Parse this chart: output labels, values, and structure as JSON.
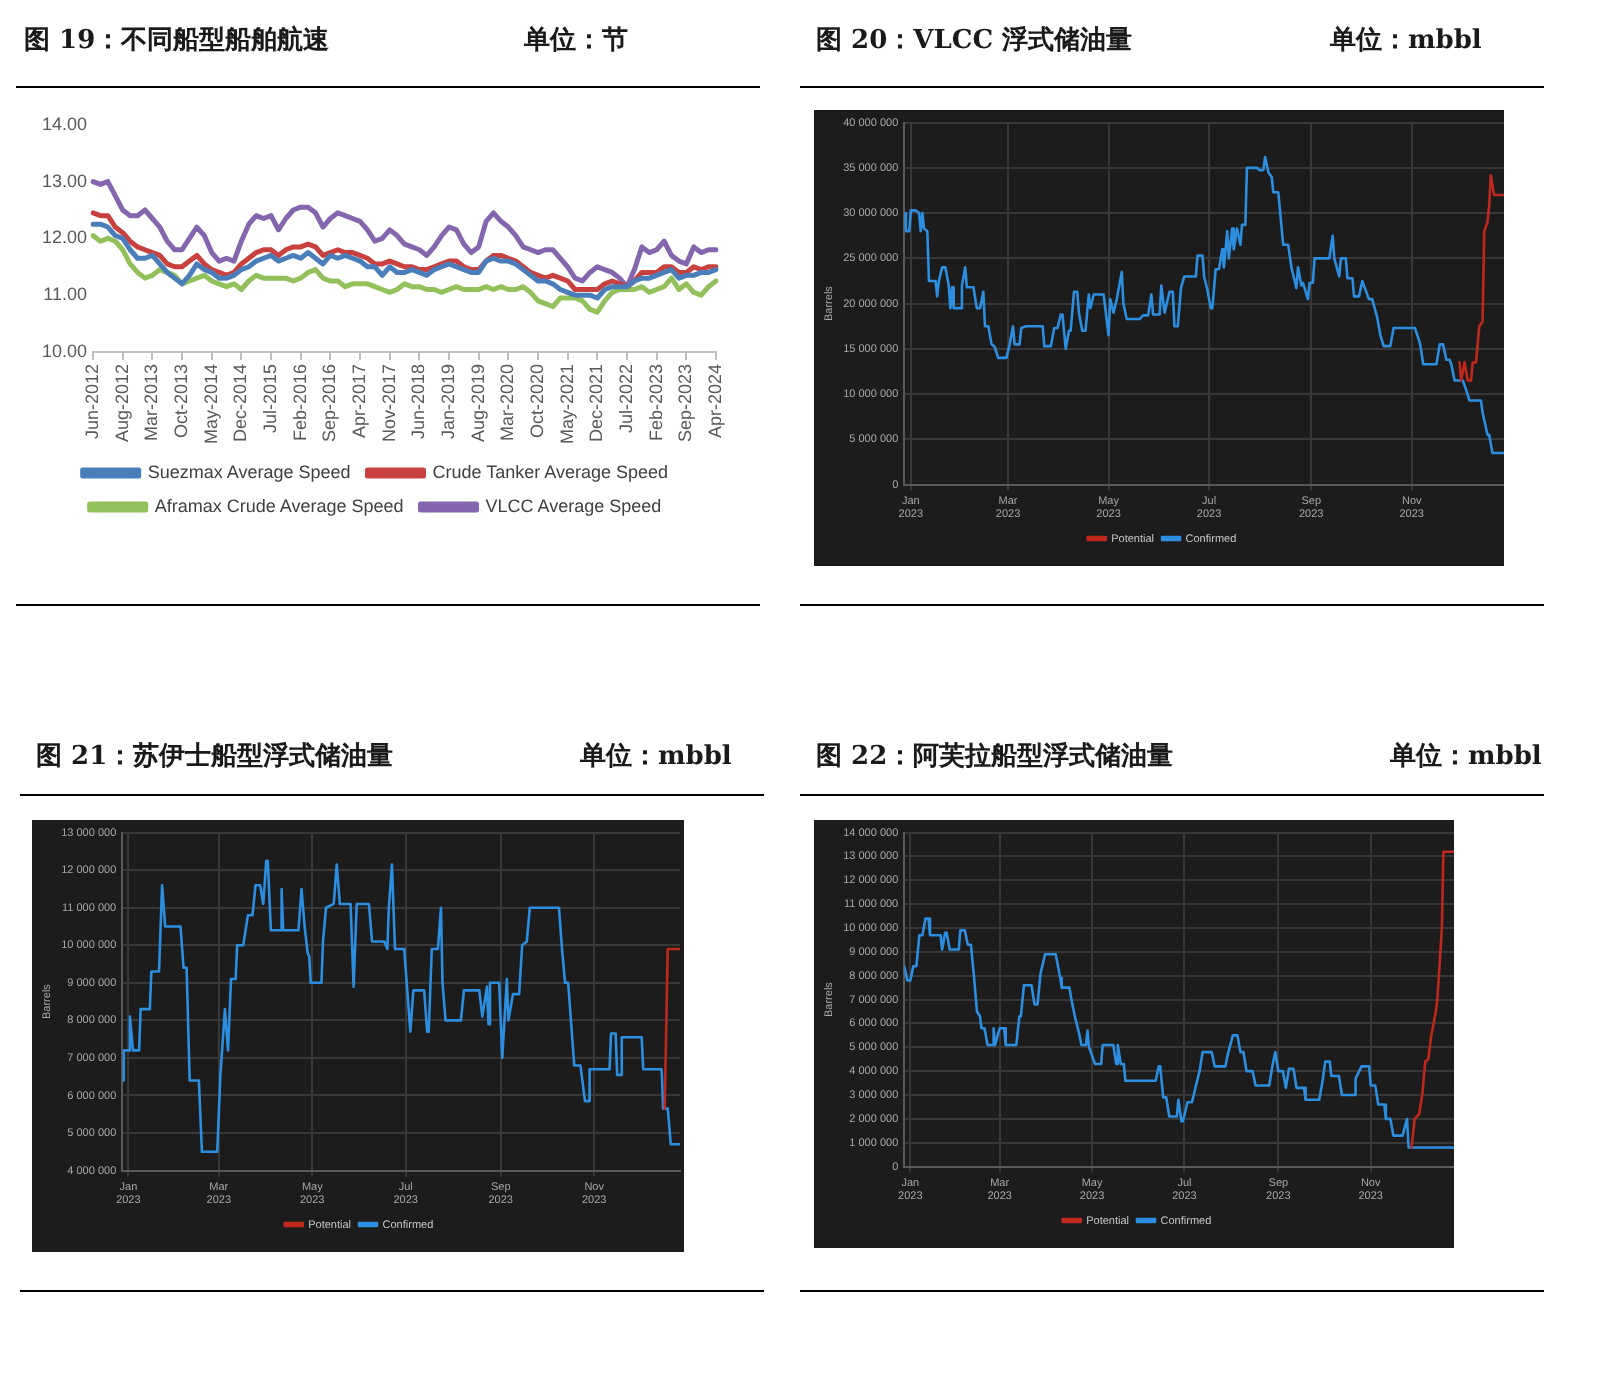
{
  "chart_data": [
    {
      "type": "line",
      "title": "图 19：不同船型船舶航速",
      "subtitle": "单位：节",
      "categories": [
        "Jun-2012",
        null,
        null,
        null,
        "Aug-2012",
        null,
        null,
        null,
        "Mar-2013",
        null,
        null,
        null,
        "Oct-2013",
        null,
        null,
        null,
        "May-2014",
        null,
        null,
        null,
        "Dec-2014",
        null,
        null,
        null,
        "Jul-2015",
        null,
        null,
        null,
        "Feb-2016",
        null,
        null,
        null,
        "Sep-2016",
        null,
        null,
        null,
        "Apr-2017",
        null,
        null,
        null,
        "Nov-2017",
        null,
        null,
        null,
        "Jun-2018",
        null,
        null,
        null,
        "Jan-2019",
        null,
        null,
        null,
        "Aug-2019",
        null,
        null,
        null,
        "Mar-2020",
        null,
        null,
        null,
        "Oct-2020",
        null,
        null,
        null,
        "May-2021",
        null,
        null,
        null,
        "Dec-2021",
        null,
        null,
        null,
        "Jul-2022",
        null,
        null,
        null,
        "Feb-2023",
        null,
        null,
        null,
        "Sep-2023",
        null,
        null,
        null,
        "Apr-2024"
      ],
      "series": [
        {
          "name": "Suezmax Average Speed",
          "color": "#4a7ebb",
          "values": [
            12.25,
            12.25,
            12.2,
            12.05,
            12.0,
            11.8,
            11.65,
            11.65,
            11.7,
            11.55,
            11.4,
            11.3,
            11.2,
            11.35,
            11.55,
            11.45,
            11.4,
            11.3,
            11.3,
            11.35,
            11.45,
            11.5,
            11.6,
            11.65,
            11.7,
            11.6,
            11.65,
            11.7,
            11.65,
            11.75,
            11.65,
            11.55,
            11.7,
            11.65,
            11.7,
            11.65,
            11.6,
            11.5,
            11.5,
            11.35,
            11.5,
            11.4,
            11.4,
            11.45,
            11.4,
            11.35,
            11.45,
            11.5,
            11.55,
            11.5,
            11.45,
            11.4,
            11.4,
            11.6,
            11.65,
            11.6,
            11.6,
            11.55,
            11.45,
            11.35,
            11.25,
            11.25,
            11.2,
            11.1,
            11.05,
            11.0,
            11.0,
            11.0,
            10.95,
            11.1,
            11.15,
            11.15,
            11.15,
            11.25,
            11.3,
            11.3,
            11.35,
            11.4,
            11.45,
            11.3,
            11.35,
            11.35,
            11.4,
            11.4,
            11.45
          ]
        },
        {
          "name": "Crude Tanker Average Speed",
          "color": "#c9413e",
          "values": [
            12.45,
            12.4,
            12.4,
            12.2,
            12.1,
            11.95,
            11.85,
            11.8,
            11.75,
            11.7,
            11.55,
            11.5,
            11.5,
            11.6,
            11.7,
            11.55,
            11.45,
            11.4,
            11.35,
            11.4,
            11.55,
            11.65,
            11.75,
            11.8,
            11.8,
            11.7,
            11.8,
            11.85,
            11.85,
            11.9,
            11.85,
            11.7,
            11.75,
            11.8,
            11.75,
            11.75,
            11.7,
            11.65,
            11.55,
            11.55,
            11.6,
            11.55,
            11.5,
            11.5,
            11.45,
            11.45,
            11.5,
            11.55,
            11.6,
            11.6,
            11.5,
            11.45,
            11.45,
            11.6,
            11.7,
            11.7,
            11.65,
            11.6,
            11.5,
            11.4,
            11.35,
            11.3,
            11.35,
            11.3,
            11.25,
            11.1,
            11.1,
            11.1,
            11.1,
            11.2,
            11.25,
            11.2,
            11.15,
            11.25,
            11.4,
            11.4,
            11.4,
            11.5,
            11.5,
            11.4,
            11.4,
            11.5,
            11.45,
            11.5,
            11.5
          ]
        },
        {
          "name": "Aframax Crude Average Speed",
          "color": "#92c05a",
          "values": [
            12.05,
            11.95,
            12.0,
            11.95,
            11.8,
            11.55,
            11.4,
            11.3,
            11.35,
            11.45,
            11.4,
            11.35,
            11.2,
            11.25,
            11.3,
            11.35,
            11.25,
            11.2,
            11.15,
            11.2,
            11.1,
            11.25,
            11.35,
            11.3,
            11.3,
            11.3,
            11.3,
            11.25,
            11.3,
            11.4,
            11.45,
            11.3,
            11.25,
            11.25,
            11.15,
            11.2,
            11.2,
            11.2,
            11.15,
            11.1,
            11.05,
            11.1,
            11.2,
            11.15,
            11.15,
            11.1,
            11.1,
            11.05,
            11.1,
            11.15,
            11.1,
            11.1,
            11.1,
            11.15,
            11.1,
            11.15,
            11.1,
            11.1,
            11.15,
            11.05,
            10.9,
            10.85,
            10.8,
            10.95,
            10.95,
            10.95,
            10.9,
            10.75,
            10.7,
            10.9,
            11.05,
            11.1,
            11.1,
            11.1,
            11.15,
            11.05,
            11.1,
            11.15,
            11.3,
            11.1,
            11.2,
            11.05,
            11.0,
            11.15,
            11.25
          ]
        },
        {
          "name": "VLCC Average Speed",
          "color": "#8465ae",
          "values": [
            13.0,
            12.95,
            13.0,
            12.75,
            12.5,
            12.4,
            12.4,
            12.5,
            12.35,
            12.2,
            11.95,
            11.8,
            11.8,
            12.0,
            12.2,
            12.05,
            11.75,
            11.6,
            11.65,
            11.6,
            11.95,
            12.25,
            12.4,
            12.35,
            12.4,
            12.15,
            12.35,
            12.5,
            12.55,
            12.55,
            12.45,
            12.2,
            12.35,
            12.45,
            12.4,
            12.35,
            12.3,
            12.15,
            11.95,
            12.0,
            12.15,
            12.05,
            11.9,
            11.85,
            11.8,
            11.7,
            11.85,
            12.05,
            12.2,
            12.15,
            11.9,
            11.75,
            11.85,
            12.3,
            12.45,
            12.3,
            12.2,
            12.05,
            11.85,
            11.8,
            11.75,
            11.8,
            11.8,
            11.65,
            11.5,
            11.3,
            11.25,
            11.4,
            11.5,
            11.45,
            11.4,
            11.3,
            11.15,
            11.45,
            11.85,
            11.75,
            11.8,
            11.95,
            11.7,
            11.6,
            11.55,
            11.85,
            11.75,
            11.8,
            11.8
          ]
        }
      ],
      "ylim": [
        10,
        14
      ],
      "yticks": [
        {
          "value": 10,
          "label": "10.00"
        },
        {
          "value": 11,
          "label": "11.00"
        },
        {
          "value": 12,
          "label": "12.00"
        },
        {
          "value": 13,
          "label": "13.00"
        },
        {
          "value": 14,
          "label": "14.00"
        }
      ],
      "legend": "bottom",
      "marker": "none"
    },
    {
      "type": "line",
      "title": "图 20：VLCC 浮式储油量",
      "subtitle": "单位：mbbl",
      "ylabel": "Barrels",
      "series": [
        {
          "name": "Potential",
          "color": "#c0281e",
          "x": [
            "2023-11-30",
            "2023-12-01",
            "2023-12-03",
            "2023-12-05",
            "2023-12-07",
            "2023-12-08",
            "2023-12-10",
            "2023-12-12",
            "2023-12-14",
            "2023-12-15",
            "2023-12-17",
            "2023-12-18",
            "2023-12-19",
            "2023-12-21",
            "2023-12-27"
          ],
          "values": [
            13500000,
            11500000,
            13500000,
            11500000,
            11500000,
            13500000,
            13500000,
            17500000,
            18000000,
            28000000,
            29000000,
            30800000,
            34200000,
            32000000,
            32000000
          ]
        },
        {
          "name": "Confirmed",
          "color": "#2b8ee0",
          "x": [
            "2022-12-28",
            "2022-12-29",
            "2022-12-31",
            "2023-01-01",
            "2023-01-04",
            "2023-01-06",
            "2023-01-07",
            "2023-01-08",
            "2023-01-09",
            "2023-01-11",
            "2023-01-12",
            "2023-01-16",
            "2023-01-17",
            "2023-01-18",
            "2023-01-20",
            "2023-01-22",
            "2023-01-24",
            "2023-01-25",
            "2023-01-26",
            "2023-01-27",
            "2023-01-31",
            "2023-02-01",
            "2023-02-03",
            "2023-02-04",
            "2023-02-08",
            "2023-02-10",
            "2023-02-12",
            "2023-02-14",
            "2023-02-15",
            "2023-02-17",
            "2023-02-19",
            "2023-02-21",
            "2023-02-23",
            "2023-02-28",
            "2023-03-02",
            "2023-03-04",
            "2023-03-05",
            "2023-03-08",
            "2023-03-09",
            "2023-03-12",
            "2023-03-22",
            "2023-03-23",
            "2023-03-27",
            "2023-03-29",
            "2023-03-31",
            "2023-04-02",
            "2023-04-03",
            "2023-04-05",
            "2023-04-07",
            "2023-04-08",
            "2023-04-10",
            "2023-04-12",
            "2023-04-13",
            "2023-04-15",
            "2023-04-17",
            "2023-04-19",
            "2023-04-20",
            "2023-04-22",
            "2023-04-28",
            "2023-05-01",
            "2023-05-02",
            "2023-05-04",
            "2023-05-06",
            "2023-05-09",
            "2023-05-10",
            "2023-05-12",
            "2023-05-20",
            "2023-05-22",
            "2023-05-25",
            "2023-05-27",
            "2023-05-28",
            "2023-06-01",
            "2023-06-02",
            "2023-06-04",
            "2023-06-07",
            "2023-06-09",
            "2023-06-10",
            "2023-06-12",
            "2023-06-14",
            "2023-06-16",
            "2023-06-23",
            "2023-06-24",
            "2023-06-27",
            "2023-06-28",
            "2023-06-30",
            "2023-07-02",
            "2023-07-03",
            "2023-07-05",
            "2023-07-07",
            "2023-07-09",
            "2023-07-10",
            "2023-07-12",
            "2023-07-13",
            "2023-07-15",
            "2023-07-16",
            "2023-07-18",
            "2023-07-20",
            "2023-07-21",
            "2023-07-23",
            "2023-07-24",
            "2023-07-30",
            "2023-08-01",
            "2023-08-03",
            "2023-08-04",
            "2023-08-06",
            "2023-08-08",
            "2023-08-09",
            "2023-08-12",
            "2023-08-15",
            "2023-08-18",
            "2023-08-20",
            "2023-08-23",
            "2023-08-24",
            "2023-08-26",
            "2023-08-27",
            "2023-08-30",
            "2023-08-31",
            "2023-09-02",
            "2023-09-03",
            "2023-09-12",
            "2023-09-14",
            "2023-09-15",
            "2023-09-18",
            "2023-09-19",
            "2023-09-22",
            "2023-09-23",
            "2023-09-26",
            "2023-09-27",
            "2023-09-30",
            "2023-10-02",
            "2023-10-03",
            "2023-10-06",
            "2023-10-08",
            "2023-10-11",
            "2023-10-13",
            "2023-10-15",
            "2023-10-19",
            "2023-10-21",
            "2023-11-03",
            "2023-11-06",
            "2023-11-08",
            "2023-11-16",
            "2023-11-18",
            "2023-11-20",
            "2023-11-22",
            "2023-11-24",
            "2023-11-25",
            "2023-11-27",
            "2023-12-02",
            "2023-12-04",
            "2023-12-06",
            "2023-12-13",
            "2023-12-14",
            "2023-12-17",
            "2023-12-18",
            "2023-12-20",
            "2023-12-27"
          ],
          "values": [
            30000000,
            28000000,
            28000000,
            30300000,
            30300000,
            30000000,
            28000000,
            30000000,
            28300000,
            28000000,
            22500000,
            22500000,
            20800000,
            22500000,
            24000000,
            24000000,
            22000000,
            19500000,
            21800000,
            19500000,
            19500000,
            22000000,
            24000000,
            21800000,
            21800000,
            19500000,
            19500000,
            21300000,
            17500000,
            17500000,
            15500000,
            15200000,
            14000000,
            14000000,
            15500000,
            17500000,
            15500000,
            15500000,
            17300000,
            17500000,
            17500000,
            15300000,
            15300000,
            17300000,
            17300000,
            18800000,
            18800000,
            15000000,
            17000000,
            17000000,
            21300000,
            21300000,
            19000000,
            17000000,
            17000000,
            21000000,
            19500000,
            21000000,
            21000000,
            16500000,
            20500000,
            19000000,
            20500000,
            23500000,
            20000000,
            18300000,
            18300000,
            18700000,
            18700000,
            21000000,
            18800000,
            18800000,
            22000000,
            19000000,
            21300000,
            21300000,
            17500000,
            17500000,
            21800000,
            23000000,
            23000000,
            25300000,
            25300000,
            23000000,
            21500000,
            19500000,
            19500000,
            23800000,
            23800000,
            26000000,
            24000000,
            28000000,
            25000000,
            28300000,
            26000000,
            28300000,
            26500000,
            28700000,
            28700000,
            35000000,
            35000000,
            34700000,
            34800000,
            36200000,
            34500000,
            34000000,
            32300000,
            32300000,
            26500000,
            26500000,
            24000000,
            21700000,
            24000000,
            22000000,
            22300000,
            20500000,
            22300000,
            22300000,
            25000000,
            25000000,
            27500000,
            25000000,
            23000000,
            25000000,
            25000000,
            22800000,
            22800000,
            20800000,
            20800000,
            22500000,
            22500000,
            20500000,
            20500000,
            18500000,
            16500000,
            15300000,
            15300000,
            17300000,
            17300000,
            15600000,
            13300000,
            13300000,
            15500000,
            15500000,
            13800000,
            13800000,
            13300000,
            11500000,
            11500000,
            10500000,
            9300000,
            9300000,
            8000000,
            5500000,
            5500000,
            3500000,
            3500000
          ]
        }
      ],
      "xlim": [
        "2022-12-28",
        "2023-12-27"
      ],
      "xticks": [
        {
          "value": "2023-01-01",
          "label": "Jan\n2023"
        },
        {
          "value": "2023-03-01",
          "label": "Mar\n2023"
        },
        {
          "value": "2023-05-01",
          "label": "May\n2023"
        },
        {
          "value": "2023-07-01",
          "label": "Jul\n2023"
        },
        {
          "value": "2023-09-01",
          "label": "Sep\n2023"
        },
        {
          "value": "2023-11-01",
          "label": "Nov\n2023"
        }
      ],
      "ylim": [
        0,
        40000000
      ],
      "yticks": [
        0,
        {
          "value": 5000000,
          "label": "5 000 000"
        },
        {
          "value": 10000000,
          "label": "10 000 000"
        },
        {
          "value": 15000000,
          "label": "15 000 000"
        },
        {
          "value": 20000000,
          "label": "20 000 000"
        },
        {
          "value": 25000000,
          "label": "25 000 000"
        },
        {
          "value": 30000000,
          "label": "30 000 000"
        },
        {
          "value": 35000000,
          "label": "35 000 000"
        },
        {
          "value": 40000000,
          "label": "40 000 000"
        }
      ],
      "grid": true,
      "legend": "bottom",
      "marker": "none"
    },
    {
      "type": "line",
      "title": "图 21：苏伊士船型浮式储油量",
      "subtitle": "单位：mbbl",
      "ylabel": "Barrels",
      "series": [
        {
          "name": "Potential",
          "color": "#c0281e",
          "x": [
            "2023-12-17",
            "2023-12-19",
            "2023-12-27"
          ],
          "values": [
            5650000,
            9900000,
            9900000
          ]
        },
        {
          "name": "Confirmed",
          "color": "#2b8ee0",
          "x": [
            "2022-12-28",
            "2022-12-29",
            "2023-01-01",
            "2023-01-02",
            "2023-01-04",
            "2023-01-08",
            "2023-01-09",
            "2023-01-15",
            "2023-01-16",
            "2023-01-21",
            "2023-01-23",
            "2023-01-25",
            "2023-02-04",
            "2023-02-06",
            "2023-02-08",
            "2023-02-10",
            "2023-02-16",
            "2023-02-18",
            "2023-02-28",
            "2023-03-02",
            "2023-03-05",
            "2023-03-07",
            "2023-03-09",
            "2023-03-12",
            "2023-03-13",
            "2023-03-17",
            "2023-03-20",
            "2023-03-23",
            "2023-03-25",
            "2023-03-28",
            "2023-03-30",
            "2023-04-01",
            "2023-04-02",
            "2023-04-04",
            "2023-04-10",
            "2023-04-11",
            "2023-04-12",
            "2023-04-22",
            "2023-04-24",
            "2023-04-26",
            "2023-04-28",
            "2023-04-29",
            "2023-04-30",
            "2023-05-07",
            "2023-05-08",
            "2023-05-10",
            "2023-05-15",
            "2023-05-17",
            "2023-05-19",
            "2023-05-26",
            "2023-05-28",
            "2023-05-30",
            "2023-06-07",
            "2023-06-09",
            "2023-06-17",
            "2023-06-19",
            "2023-06-20",
            "2023-06-22",
            "2023-06-24",
            "2023-06-30",
            "2023-07-02",
            "2023-07-04",
            "2023-07-06",
            "2023-07-13",
            "2023-07-15",
            "2023-07-16",
            "2023-07-18",
            "2023-07-22",
            "2023-07-24",
            "2023-07-25",
            "2023-07-27",
            "2023-08-06",
            "2023-08-08",
            "2023-08-18",
            "2023-08-20",
            "2023-08-21",
            "2023-08-23",
            "2023-08-24",
            "2023-08-25",
            "2023-08-31",
            "2023-09-02",
            "2023-09-05",
            "2023-09-06",
            "2023-09-07",
            "2023-09-09",
            "2023-09-13",
            "2023-09-15",
            "2023-09-18",
            "2023-09-20",
            "2023-10-09",
            "2023-10-11",
            "2023-10-13",
            "2023-10-15",
            "2023-10-17",
            "2023-10-19",
            "2023-10-23",
            "2023-10-26",
            "2023-10-28",
            "2023-10-29",
            "2023-11-11",
            "2023-11-12",
            "2023-11-15",
            "2023-11-16",
            "2023-11-18",
            "2023-11-19",
            "2023-12-02",
            "2023-12-03",
            "2023-12-15",
            "2023-12-16",
            "2023-12-19",
            "2023-12-21",
            "2023-12-27"
          ],
          "values": [
            6400000,
            7200000,
            7200000,
            8100000,
            7200000,
            7200000,
            8300000,
            8300000,
            9300000,
            9300000,
            11600000,
            10500000,
            10500000,
            9400000,
            9400000,
            6400000,
            6400000,
            4500000,
            4500000,
            6500000,
            8300000,
            7200000,
            9100000,
            9100000,
            10000000,
            10000000,
            10800000,
            10800000,
            11600000,
            11600000,
            11100000,
            12250000,
            12200000,
            10400000,
            10400000,
            11500000,
            10400000,
            10400000,
            11500000,
            10500000,
            9800000,
            9700000,
            9000000,
            9000000,
            10100000,
            11000000,
            11100000,
            12150000,
            11100000,
            11100000,
            8900000,
            11100000,
            11100000,
            10100000,
            10100000,
            9900000,
            11000000,
            12150000,
            9900000,
            9900000,
            8800000,
            7700000,
            8800000,
            8800000,
            7700000,
            7700000,
            9900000,
            9900000,
            11000000,
            9000000,
            8000000,
            8000000,
            8800000,
            8800000,
            8100000,
            8100000,
            8900000,
            7900000,
            9000000,
            9000000,
            7000000,
            9100000,
            8000000,
            8000000,
            8700000,
            8700000,
            10000000,
            10100000,
            11000000,
            11000000,
            9900000,
            9000000,
            9000000,
            7900000,
            6800000,
            6800000,
            5850000,
            5850000,
            6700000,
            6700000,
            7650000,
            7650000,
            6550000,
            6550000,
            7550000,
            7550000,
            6700000,
            6700000,
            5650000,
            5650000,
            4700000,
            4700000
          ]
        }
      ],
      "xlim": [
        "2022-12-28",
        "2023-12-27"
      ],
      "xticks": [
        {
          "value": "2023-01-01",
          "label": "Jan\n2023"
        },
        {
          "value": "2023-03-01",
          "label": "Mar\n2023"
        },
        {
          "value": "2023-05-01",
          "label": "May\n2023"
        },
        {
          "value": "2023-07-01",
          "label": "Jul\n2023"
        },
        {
          "value": "2023-09-01",
          "label": "Sep\n2023"
        },
        {
          "value": "2023-11-01",
          "label": "Nov\n2023"
        }
      ],
      "ylim": [
        4000000,
        13000000
      ],
      "yticks": [
        {
          "value": 4000000,
          "label": "4 000 000"
        },
        {
          "value": 5000000,
          "label": "5 000 000"
        },
        {
          "value": 6000000,
          "label": "6 000 000"
        },
        {
          "value": 7000000,
          "label": "7 000 000"
        },
        {
          "value": 8000000,
          "label": "8 000 000"
        },
        {
          "value": 9000000,
          "label": "9 000 000"
        },
        {
          "value": 10000000,
          "label": "10 000 000"
        },
        {
          "value": 11000000,
          "label": "11 000 000"
        },
        {
          "value": 12000000,
          "label": "12 000 000"
        },
        {
          "value": 13000000,
          "label": "13 000 000"
        }
      ],
      "grid": true,
      "legend": "bottom",
      "marker": "none"
    },
    {
      "type": "line",
      "title": "图 22：阿芙拉船型浮式储油量",
      "subtitle": "单位：mbbl",
      "ylabel": "Barrels",
      "series": [
        {
          "name": "Potential",
          "color": "#c0281e",
          "x": [
            "2023-11-28",
            "2023-11-30",
            "2023-12-03",
            "2023-12-05",
            "2023-12-07",
            "2023-12-09",
            "2023-12-11",
            "2023-12-14",
            "2023-12-15",
            "2023-12-18",
            "2023-12-19",
            "2023-12-26"
          ],
          "values": [
            800000,
            2000000,
            2200000,
            3000000,
            4400000,
            4500000,
            5500000,
            6500000,
            7000000,
            10000000,
            13200000,
            13200000
          ]
        },
        {
          "name": "Confirmed",
          "color": "#2b8ee0",
          "x": [
            "2022-12-28",
            "2022-12-30",
            "2023-01-01",
            "2023-01-03",
            "2023-01-05",
            "2023-01-07",
            "2023-01-09",
            "2023-01-11",
            "2023-01-13",
            "2023-01-14",
            "2023-01-21",
            "2023-01-22",
            "2023-01-24",
            "2023-01-25",
            "2023-01-27",
            "2023-02-02",
            "2023-02-03",
            "2023-02-06",
            "2023-02-08",
            "2023-02-10",
            "2023-02-12",
            "2023-02-14",
            "2023-02-16",
            "2023-02-17",
            "2023-02-19",
            "2023-02-21",
            "2023-02-24",
            "2023-02-25",
            "2023-02-26",
            "2023-03-01",
            "2023-03-04",
            "2023-03-05",
            "2023-03-12",
            "2023-03-14",
            "2023-03-15",
            "2023-03-17",
            "2023-03-22",
            "2023-03-24",
            "2023-03-26",
            "2023-03-28",
            "2023-03-31",
            "2023-04-07",
            "2023-04-10",
            "2023-04-11",
            "2023-04-16",
            "2023-04-18",
            "2023-04-20",
            "2023-04-22",
            "2023-04-24",
            "2023-04-27",
            "2023-04-28",
            "2023-04-29",
            "2023-05-03",
            "2023-05-07",
            "2023-05-08",
            "2023-05-15",
            "2023-05-17",
            "2023-05-18",
            "2023-05-20",
            "2023-05-22",
            "2023-05-23",
            "2023-06-12",
            "2023-06-14",
            "2023-06-15",
            "2023-06-17",
            "2023-06-19",
            "2023-06-21",
            "2023-06-26",
            "2023-06-27",
            "2023-06-29",
            "2023-06-30",
            "2023-07-03",
            "2023-07-06",
            "2023-07-09",
            "2023-07-11",
            "2023-07-13",
            "2023-07-19",
            "2023-07-21",
            "2023-07-28",
            "2023-07-30",
            "2023-08-02",
            "2023-08-05",
            "2023-08-07",
            "2023-08-09",
            "2023-08-11",
            "2023-08-15",
            "2023-08-17",
            "2023-08-26",
            "2023-08-28",
            "2023-08-30",
            "2023-09-01",
            "2023-09-04",
            "2023-09-06",
            "2023-09-08",
            "2023-09-11",
            "2023-09-13",
            "2023-09-18",
            "2023-09-19",
            "2023-09-28",
            "2023-09-30",
            "2023-10-02",
            "2023-10-05",
            "2023-10-06",
            "2023-10-11",
            "2023-10-13",
            "2023-10-21",
            "2023-10-22",
            "2023-10-26",
            "2023-10-31",
            "2023-11-01",
            "2023-11-04",
            "2023-11-06",
            "2023-11-10",
            "2023-11-11",
            "2023-11-14",
            "2023-11-16",
            "2023-11-22",
            "2023-11-25",
            "2023-11-26",
            "2023-12-26"
          ],
          "values": [
            8400000,
            7800000,
            7800000,
            8400000,
            8400000,
            9700000,
            9700000,
            10400000,
            10400000,
            9700000,
            9700000,
            9100000,
            9800000,
            9800000,
            9100000,
            9100000,
            9900000,
            9900000,
            9300000,
            9300000,
            8000000,
            6500000,
            6300000,
            5800000,
            5800000,
            5100000,
            5100000,
            5800000,
            5100000,
            5800000,
            5800000,
            5100000,
            5100000,
            6300000,
            6300000,
            7600000,
            7600000,
            6800000,
            6800000,
            8100000,
            8900000,
            8900000,
            7900000,
            7500000,
            7500000,
            6800000,
            6200000,
            5700000,
            5100000,
            5100000,
            5700000,
            5000000,
            4300000,
            4300000,
            5100000,
            5100000,
            4300000,
            5100000,
            4300000,
            4300000,
            3600000,
            3600000,
            4200000,
            4200000,
            2900000,
            2900000,
            2100000,
            2100000,
            2800000,
            1900000,
            1900000,
            2700000,
            2700000,
            3500000,
            4000000,
            4800000,
            4800000,
            4200000,
            4200000,
            4800000,
            5500000,
            5500000,
            4800000,
            4800000,
            4000000,
            4000000,
            3400000,
            3400000,
            4200000,
            4800000,
            4000000,
            4000000,
            3300000,
            4100000,
            4100000,
            3300000,
            3300000,
            2800000,
            2800000,
            3500000,
            4400000,
            4400000,
            3800000,
            3800000,
            3000000,
            3000000,
            3700000,
            4200000,
            4200000,
            3400000,
            3400000,
            2600000,
            2600000,
            2000000,
            2000000,
            1300000,
            1300000,
            2000000,
            800000,
            800000
          ]
        }
      ],
      "xlim": [
        "2022-12-28",
        "2023-12-26"
      ],
      "xticks": [
        {
          "value": "2023-01-01",
          "label": "Jan\n2023"
        },
        {
          "value": "2023-03-01",
          "label": "Mar\n2023"
        },
        {
          "value": "2023-05-01",
          "label": "May\n2023"
        },
        {
          "value": "2023-07-01",
          "label": "Jul\n2023"
        },
        {
          "value": "2023-09-01",
          "label": "Sep\n2023"
        },
        {
          "value": "2023-11-01",
          "label": "Nov\n2023"
        }
      ],
      "ylim": [
        0,
        14000000
      ],
      "yticks": [
        0,
        {
          "value": 1000000,
          "label": "1 000 000"
        },
        {
          "value": 2000000,
          "label": "2 000 000"
        },
        {
          "value": 3000000,
          "label": "3 000 000"
        },
        {
          "value": 4000000,
          "label": "4 000 000"
        },
        {
          "value": 5000000,
          "label": "5 000 000"
        },
        {
          "value": 6000000,
          "label": "6 000 000"
        },
        {
          "value": 7000000,
          "label": "7 000 000"
        },
        {
          "value": 8000000,
          "label": "8 000 000"
        },
        {
          "value": 9000000,
          "label": "9 000 000"
        },
        {
          "value": 10000000,
          "label": "10 000 000"
        },
        {
          "value": 11000000,
          "label": "11 000 000"
        },
        {
          "value": 12000000,
          "label": "12 000 000"
        },
        {
          "value": 13000000,
          "label": "13 000 000"
        },
        {
          "value": 14000000,
          "label": "14 000 000"
        }
      ],
      "grid": true,
      "legend": "bottom",
      "marker": "none"
    }
  ]
}
